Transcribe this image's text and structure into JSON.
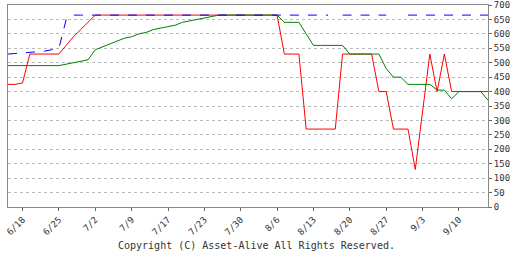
{
  "chart_data": {
    "type": "line",
    "categories": [
      null,
      null,
      "6/18",
      null,
      null,
      null,
      null,
      "6/25",
      null,
      null,
      null,
      null,
      "7/2",
      null,
      null,
      null,
      null,
      "7/9",
      null,
      null,
      null,
      null,
      "7/17",
      null,
      null,
      null,
      null,
      "7/23",
      null,
      null,
      null,
      null,
      "7/30",
      null,
      null,
      null,
      null,
      "8/6",
      null,
      null,
      null,
      null,
      "8/13",
      null,
      null,
      null,
      null,
      "8/20",
      null,
      null,
      null,
      null,
      "8/27",
      null,
      null,
      null,
      null,
      "9/3",
      null,
      null,
      null,
      null,
      "9/10",
      null,
      null,
      null,
      null
    ],
    "series": [
      {
        "color": "#ff0000",
        "line_style": "solid",
        "values": [
          425,
          425,
          430,
          530,
          530,
          530,
          530,
          530,
          560,
          590,
          615,
          640,
          665,
          665,
          665,
          665,
          665,
          665,
          665,
          665,
          665,
          665,
          665,
          665,
          665,
          665,
          665,
          665,
          665,
          665,
          665,
          665,
          665,
          665,
          665,
          665,
          665,
          665,
          530,
          530,
          530,
          270,
          270,
          270,
          270,
          270,
          530,
          530,
          530,
          530,
          530,
          400,
          400,
          270,
          270,
          270,
          130,
          330,
          530,
          400,
          530,
          400,
          400,
          400,
          400,
          400,
          400
        ]
      },
      {
        "color": "#008000",
        "line_style": "solid",
        "values": [
          490,
          490,
          490,
          490,
          490,
          488,
          488,
          490,
          495,
          500,
          505,
          510,
          545,
          555,
          565,
          575,
          585,
          590,
          600,
          605,
          615,
          620,
          625,
          630,
          640,
          645,
          650,
          655,
          660,
          665,
          665,
          665,
          665,
          665,
          665,
          665,
          665,
          665,
          640,
          640,
          640,
          600,
          560,
          560,
          560,
          560,
          560,
          530,
          530,
          530,
          530,
          530,
          480,
          450,
          450,
          425,
          425,
          425,
          425,
          405,
          405,
          375,
          400,
          400,
          400,
          400,
          370
        ]
      },
      {
        "color": "#0000ff",
        "line_style": "dash",
        "values": [
          530,
          532,
          535,
          538,
          540,
          540,
          545,
          550,
          650,
          665,
          665,
          665,
          665,
          665,
          665,
          665,
          665,
          665,
          665,
          665,
          665,
          665,
          665,
          665,
          665,
          665,
          665,
          665,
          665,
          665,
          665,
          665,
          665,
          665,
          665,
          665,
          665,
          665,
          665,
          665,
          665,
          665,
          665,
          665,
          665,
          null,
          665,
          665,
          665,
          665,
          665,
          665,
          665,
          null,
          null,
          665,
          665,
          665,
          665,
          665,
          665,
          665,
          665,
          665,
          665,
          665,
          665
        ]
      }
    ],
    "ylim": [
      0,
      700
    ],
    "yticks": [
      0,
      50,
      100,
      150,
      200,
      250,
      300,
      350,
      400,
      450,
      500,
      550,
      600,
      650,
      700
    ],
    "grid": true,
    "annotations": [
      "Copyright (C) Asset-Alive All Rights Reserved."
    ]
  }
}
